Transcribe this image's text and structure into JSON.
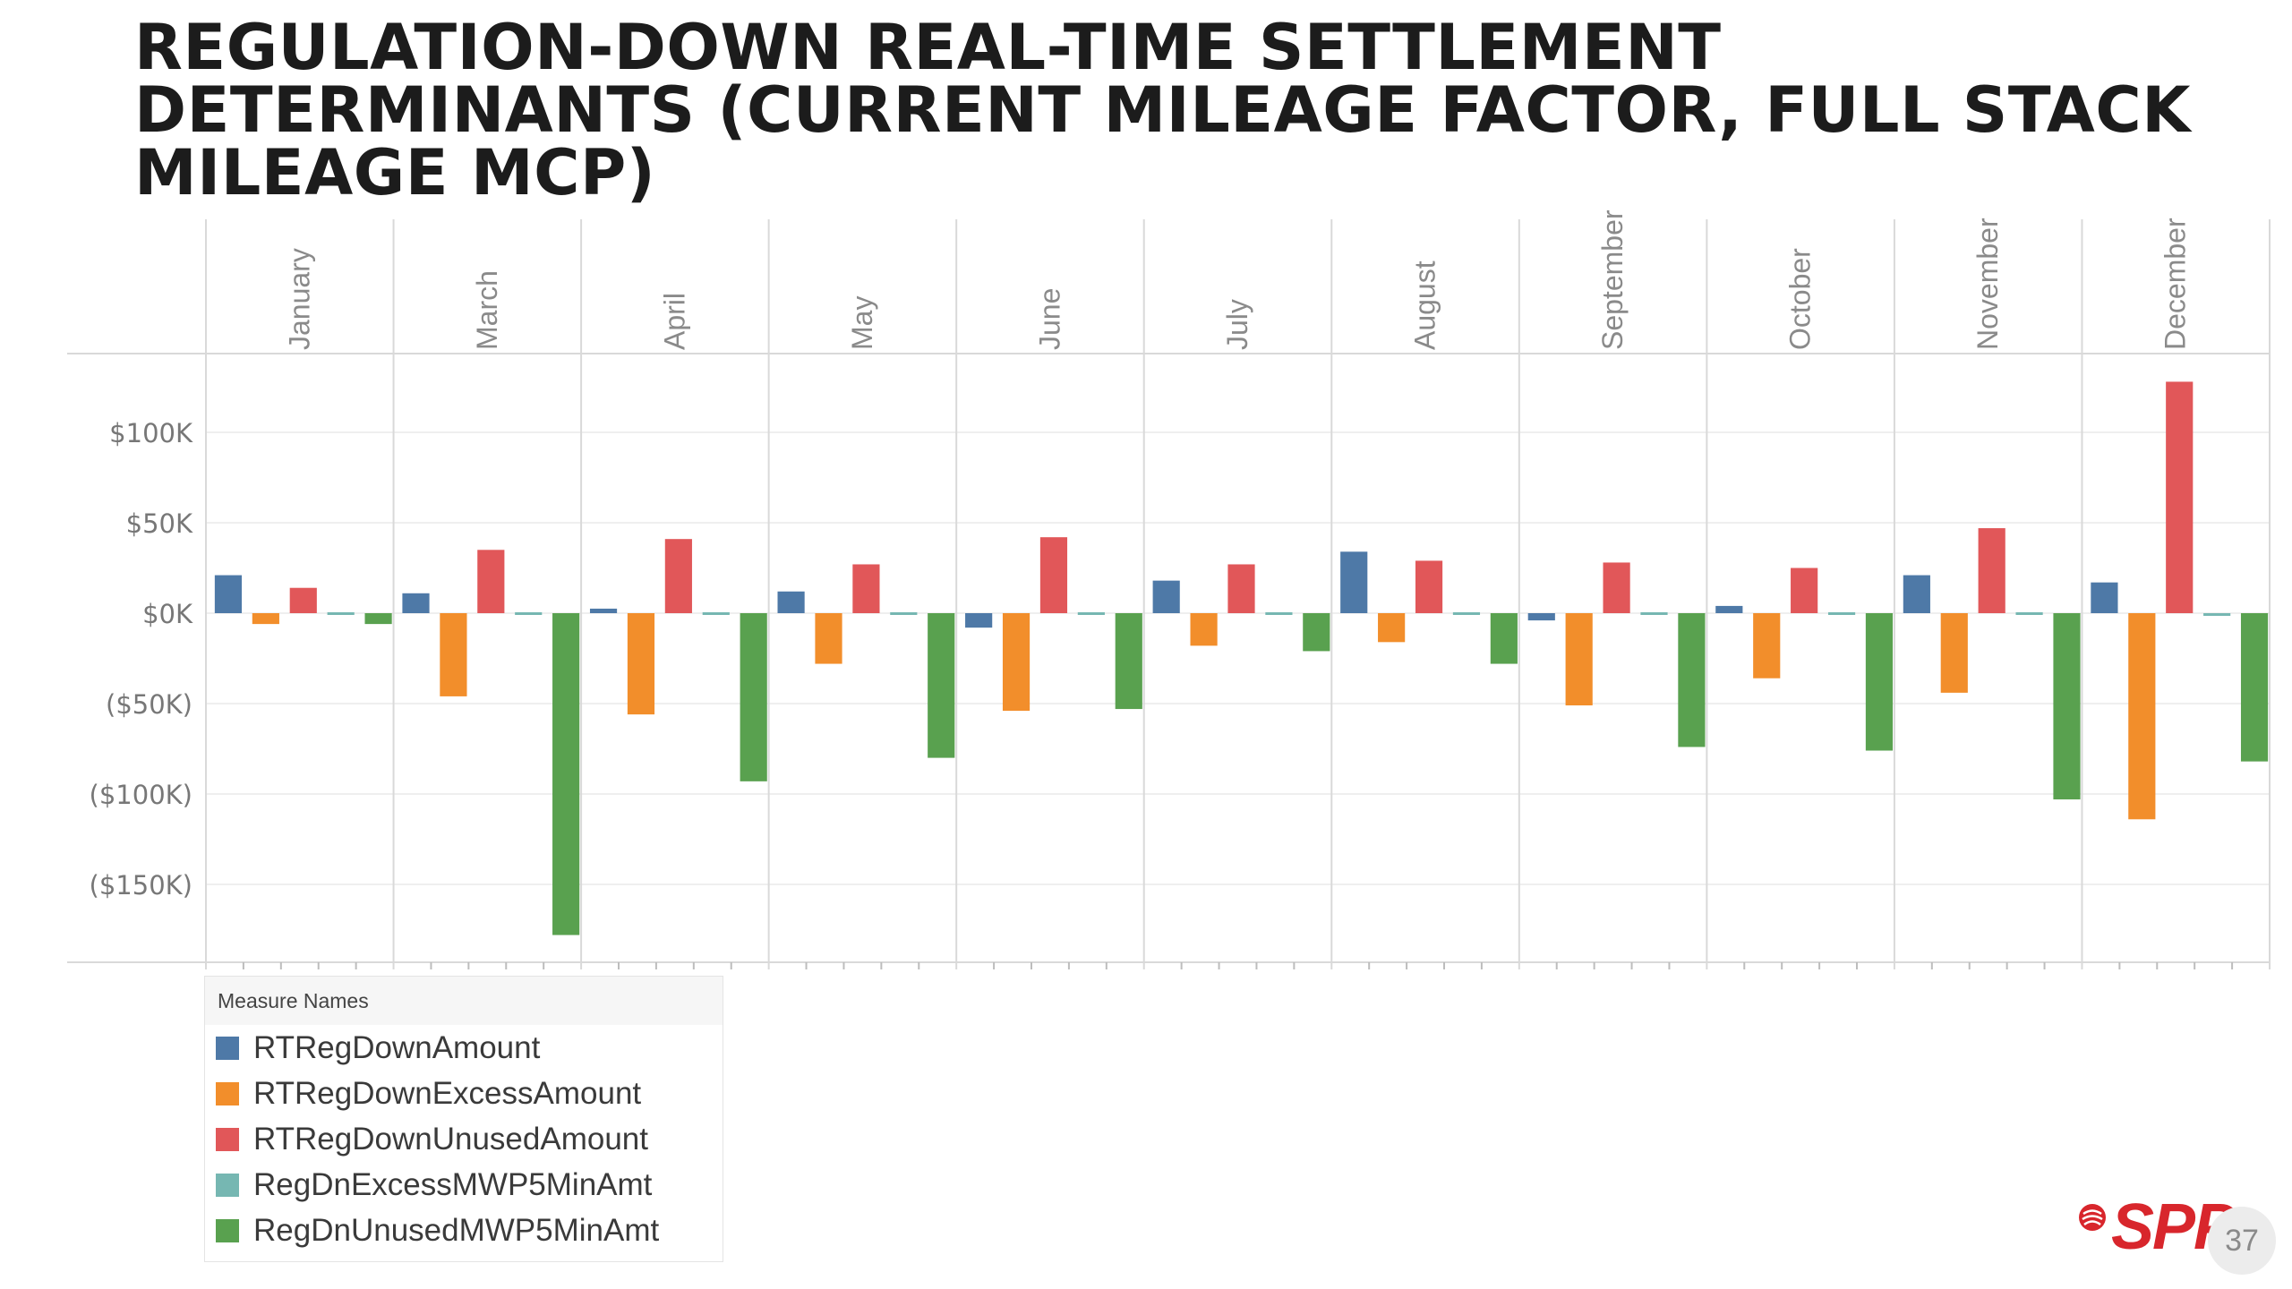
{
  "title_lines": [
    "REGULATION-DOWN REAL-TIME SETTLEMENT",
    "DETERMINANTS (CURRENT MILEAGE FACTOR, FULL STACK",
    "MILEAGE MCP)"
  ],
  "legend": {
    "header": "Measure Names",
    "items": [
      {
        "label": "RTRegDownAmount",
        "color": "#4e79a7"
      },
      {
        "label": "RTRegDownExcessAmount",
        "color": "#f28e2b"
      },
      {
        "label": "RTRegDownUnusedAmount",
        "color": "#e15759"
      },
      {
        "label": "RegDnExcessMWP5MinAmt",
        "color": "#76b7b2"
      },
      {
        "label": "RegDnUnusedMWP5MinAmt",
        "color": "#59a14f"
      }
    ]
  },
  "logo": {
    "text": "SPP",
    "icon": "spp-logo-icon"
  },
  "page_number": "37",
  "chart_data": {
    "type": "bar",
    "categories": [
      "January",
      "March",
      "April",
      "May",
      "June",
      "July",
      "August",
      "September",
      "October",
      "November",
      "December"
    ],
    "series": [
      {
        "name": "RTRegDownAmount",
        "values": [
          21000,
          11000,
          2500,
          12000,
          -8000,
          18000,
          34000,
          -4000,
          4000,
          21000,
          17000
        ]
      },
      {
        "name": "RTRegDownExcessAmount",
        "values": [
          -6000,
          -46000,
          -56000,
          -28000,
          -54000,
          -18000,
          -16000,
          -51000,
          -36000,
          -44000,
          -114000
        ]
      },
      {
        "name": "RTRegDownUnusedAmount",
        "values": [
          14000,
          35000,
          41000,
          27000,
          42000,
          27000,
          29000,
          28000,
          25000,
          47000,
          128000
        ]
      },
      {
        "name": "RegDnExcessMWP5MinAmt",
        "values": [
          0,
          0,
          0,
          0,
          0,
          0,
          0,
          0,
          0,
          0,
          -1500
        ]
      },
      {
        "name": "RegDnUnusedMWP5MinAmt",
        "values": [
          -6000,
          -178000,
          -93000,
          -80000,
          -53000,
          -21000,
          -28000,
          -74000,
          -76000,
          -103000,
          -82000
        ]
      }
    ],
    "y_ticks": [
      "$100K",
      "$50K",
      "$0K",
      "($50K)",
      "($100K)",
      "($150K)"
    ],
    "y_tick_values": [
      100000,
      50000,
      0,
      -50000,
      -100000,
      -150000
    ],
    "ylim": [
      -190000,
      143000
    ],
    "grid": true,
    "legend_position": "bottom-left"
  }
}
